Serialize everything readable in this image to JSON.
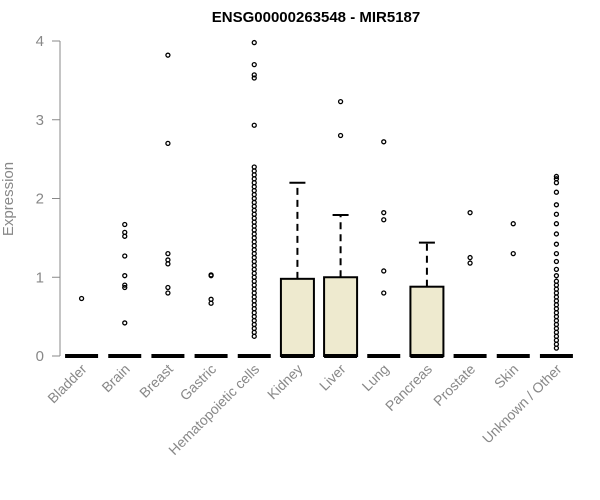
{
  "chart_data": {
    "type": "box",
    "title": "ENSG00000263548 - MIR5187",
    "xlabel": "",
    "ylabel": "Expression",
    "ylim": [
      0,
      4
    ],
    "yticks": [
      0,
      1,
      2,
      3,
      4
    ],
    "box_fill": "#eeeacf",
    "categories": [
      "Bladder",
      "Brain",
      "Breast",
      "Gastric",
      "Hematopoietic cells",
      "Kidney",
      "Liver",
      "Lung",
      "Pancreas",
      "Prostate",
      "Skin",
      "Unknown / Other"
    ],
    "boxes": [
      {
        "q1": 0,
        "median": 0,
        "q3": 0,
        "whisker_low": 0,
        "whisker_high": 0,
        "outliers": [
          0.73
        ]
      },
      {
        "q1": 0,
        "median": 0,
        "q3": 0,
        "whisker_low": 0,
        "whisker_high": 0,
        "outliers": [
          0.42,
          0.87,
          0.9,
          1.02,
          1.27,
          1.52,
          1.57,
          1.67
        ]
      },
      {
        "q1": 0,
        "median": 0,
        "q3": 0,
        "whisker_low": 0,
        "whisker_high": 0,
        "outliers": [
          0.8,
          0.87,
          1.17,
          1.22,
          1.3,
          2.7,
          3.82
        ]
      },
      {
        "q1": 0,
        "median": 0,
        "q3": 0,
        "whisker_low": 0,
        "whisker_high": 0,
        "outliers": [
          0.67,
          0.72,
          1.02,
          1.03
        ]
      },
      {
        "q1": 0,
        "median": 0,
        "q3": 0,
        "whisker_low": 0,
        "whisker_high": 0,
        "outliers": [
          0.25,
          0.3,
          0.35,
          0.4,
          0.45,
          0.5,
          0.55,
          0.6,
          0.65,
          0.7,
          0.75,
          0.8,
          0.85,
          0.9,
          0.95,
          1.0,
          1.05,
          1.1,
          1.15,
          1.2,
          1.25,
          1.3,
          1.35,
          1.4,
          1.45,
          1.5,
          1.55,
          1.6,
          1.65,
          1.7,
          1.75,
          1.8,
          1.85,
          1.9,
          1.95,
          2.0,
          2.05,
          2.1,
          2.15,
          2.2,
          2.25,
          2.3,
          2.35,
          2.4,
          2.93,
          3.53,
          3.57,
          3.7,
          3.98
        ]
      },
      {
        "q1": 0,
        "median": 0,
        "q3": 0.98,
        "whisker_low": 0,
        "whisker_high": 2.2,
        "outliers": []
      },
      {
        "q1": 0,
        "median": 0,
        "q3": 1.0,
        "whisker_low": 0,
        "whisker_high": 1.79,
        "outliers": [
          2.8,
          3.23
        ]
      },
      {
        "q1": 0,
        "median": 0,
        "q3": 0,
        "whisker_low": 0,
        "whisker_high": 0,
        "outliers": [
          0.8,
          1.08,
          1.73,
          1.82,
          2.72
        ]
      },
      {
        "q1": 0,
        "median": 0,
        "q3": 0.88,
        "whisker_low": 0,
        "whisker_high": 1.44,
        "outliers": []
      },
      {
        "q1": 0,
        "median": 0,
        "q3": 0,
        "whisker_low": 0,
        "whisker_high": 0,
        "outliers": [
          1.18,
          1.25,
          1.82
        ]
      },
      {
        "q1": 0,
        "median": 0,
        "q3": 0,
        "whisker_low": 0,
        "whisker_high": 0,
        "outliers": [
          1.3,
          1.68
        ]
      },
      {
        "q1": 0,
        "median": 0,
        "q3": 0,
        "whisker_low": 0,
        "whisker_high": 0,
        "outliers": [
          0.1,
          0.15,
          0.2,
          0.25,
          0.3,
          0.35,
          0.4,
          0.45,
          0.5,
          0.55,
          0.6,
          0.65,
          0.7,
          0.75,
          0.8,
          0.85,
          0.9,
          0.95,
          1.02,
          1.1,
          1.2,
          1.3,
          1.42,
          1.55,
          1.68,
          1.8,
          1.92,
          2.08,
          2.2,
          2.25,
          2.28
        ]
      }
    ]
  }
}
